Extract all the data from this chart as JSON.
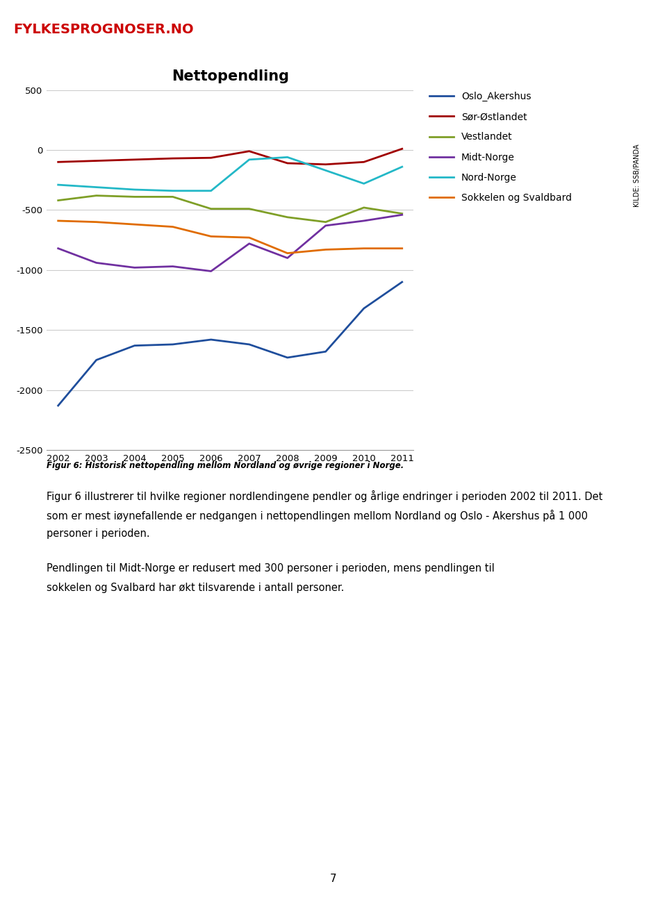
{
  "title": "Nettopendling",
  "years": [
    2002,
    2003,
    2004,
    2005,
    2006,
    2007,
    2008,
    2009,
    2010,
    2011
  ],
  "oslo_values": [
    -2130,
    -1750,
    -1630,
    -1620,
    -1580,
    -1620,
    -1730,
    -1680,
    -1320,
    -1100
  ],
  "sor_values": [
    -100,
    -90,
    -80,
    -70,
    -65,
    -10,
    -110,
    -120,
    -100,
    10
  ],
  "vest_values": [
    -420,
    -380,
    -390,
    -390,
    -490,
    -490,
    -560,
    -600,
    -480,
    -530
  ],
  "midt_values": [
    -820,
    -940,
    -980,
    -970,
    -1010,
    -780,
    -900,
    -630,
    -590,
    -540
  ],
  "nord_values": [
    -290,
    -310,
    -330,
    -340,
    -340,
    -80,
    -60,
    -170,
    -280,
    -140
  ],
  "sokkel_values": [
    -590,
    -600,
    -620,
    -640,
    -720,
    -730,
    -860,
    -830,
    -820,
    -820
  ],
  "colors": {
    "Oslo_Akershus": "#1f4e9c",
    "Sør-Østlandet": "#a00000",
    "Vestlandet": "#7f9f27",
    "Midt-Norge": "#7030a0",
    "Nord-Norge": "#23b8c7",
    "Sokkelen og Svaldbard": "#e06c00"
  },
  "ylim": [
    -2500,
    500
  ],
  "yticks": [
    500,
    0,
    -500,
    -1000,
    -1500,
    -2000,
    -2500
  ],
  "figcaption": "Figur 6: Historisk nettopendling mellom Nordland og øvrige regioner i Norge.",
  "body_lines": [
    "Figur 6 illustrerer til hvilke regioner nordlendingene pendler og årlige endringer i perioden 2002 til 2011. Det",
    "som er mest iøynefallende er nedgangen i nettopendlingen mellom Nordland og Oslo - Akershus på 1 000",
    "personer i perioden. Pendlingen til Midt-Norge er redusert med 300 personer i perioden, mens pendlingen til",
    "sokkelen og Svalbard har økt tilsvarende i antall personer."
  ],
  "kilde_text": "KILDE: SSB/PANDA",
  "page_number": "7",
  "background_color": "#ffffff",
  "header_bar_color": "#e8f0f8",
  "logo_text": "FYLKESPROGNOSER.NO",
  "logo_color": "#cc0000"
}
